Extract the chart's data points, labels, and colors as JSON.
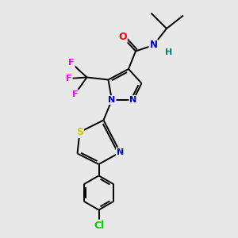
{
  "background_color": "#e8e8e8",
  "figsize": [
    3.0,
    3.0
  ],
  "dpi": 100,
  "colors": {
    "C": "#000000",
    "N": "#0000cc",
    "O": "#ff0000",
    "F": "#ff00ff",
    "S": "#cccc00",
    "Cl": "#00cc00",
    "H": "#008080"
  },
  "bond_color": "#000000",
  "bond_width": 1.4
}
